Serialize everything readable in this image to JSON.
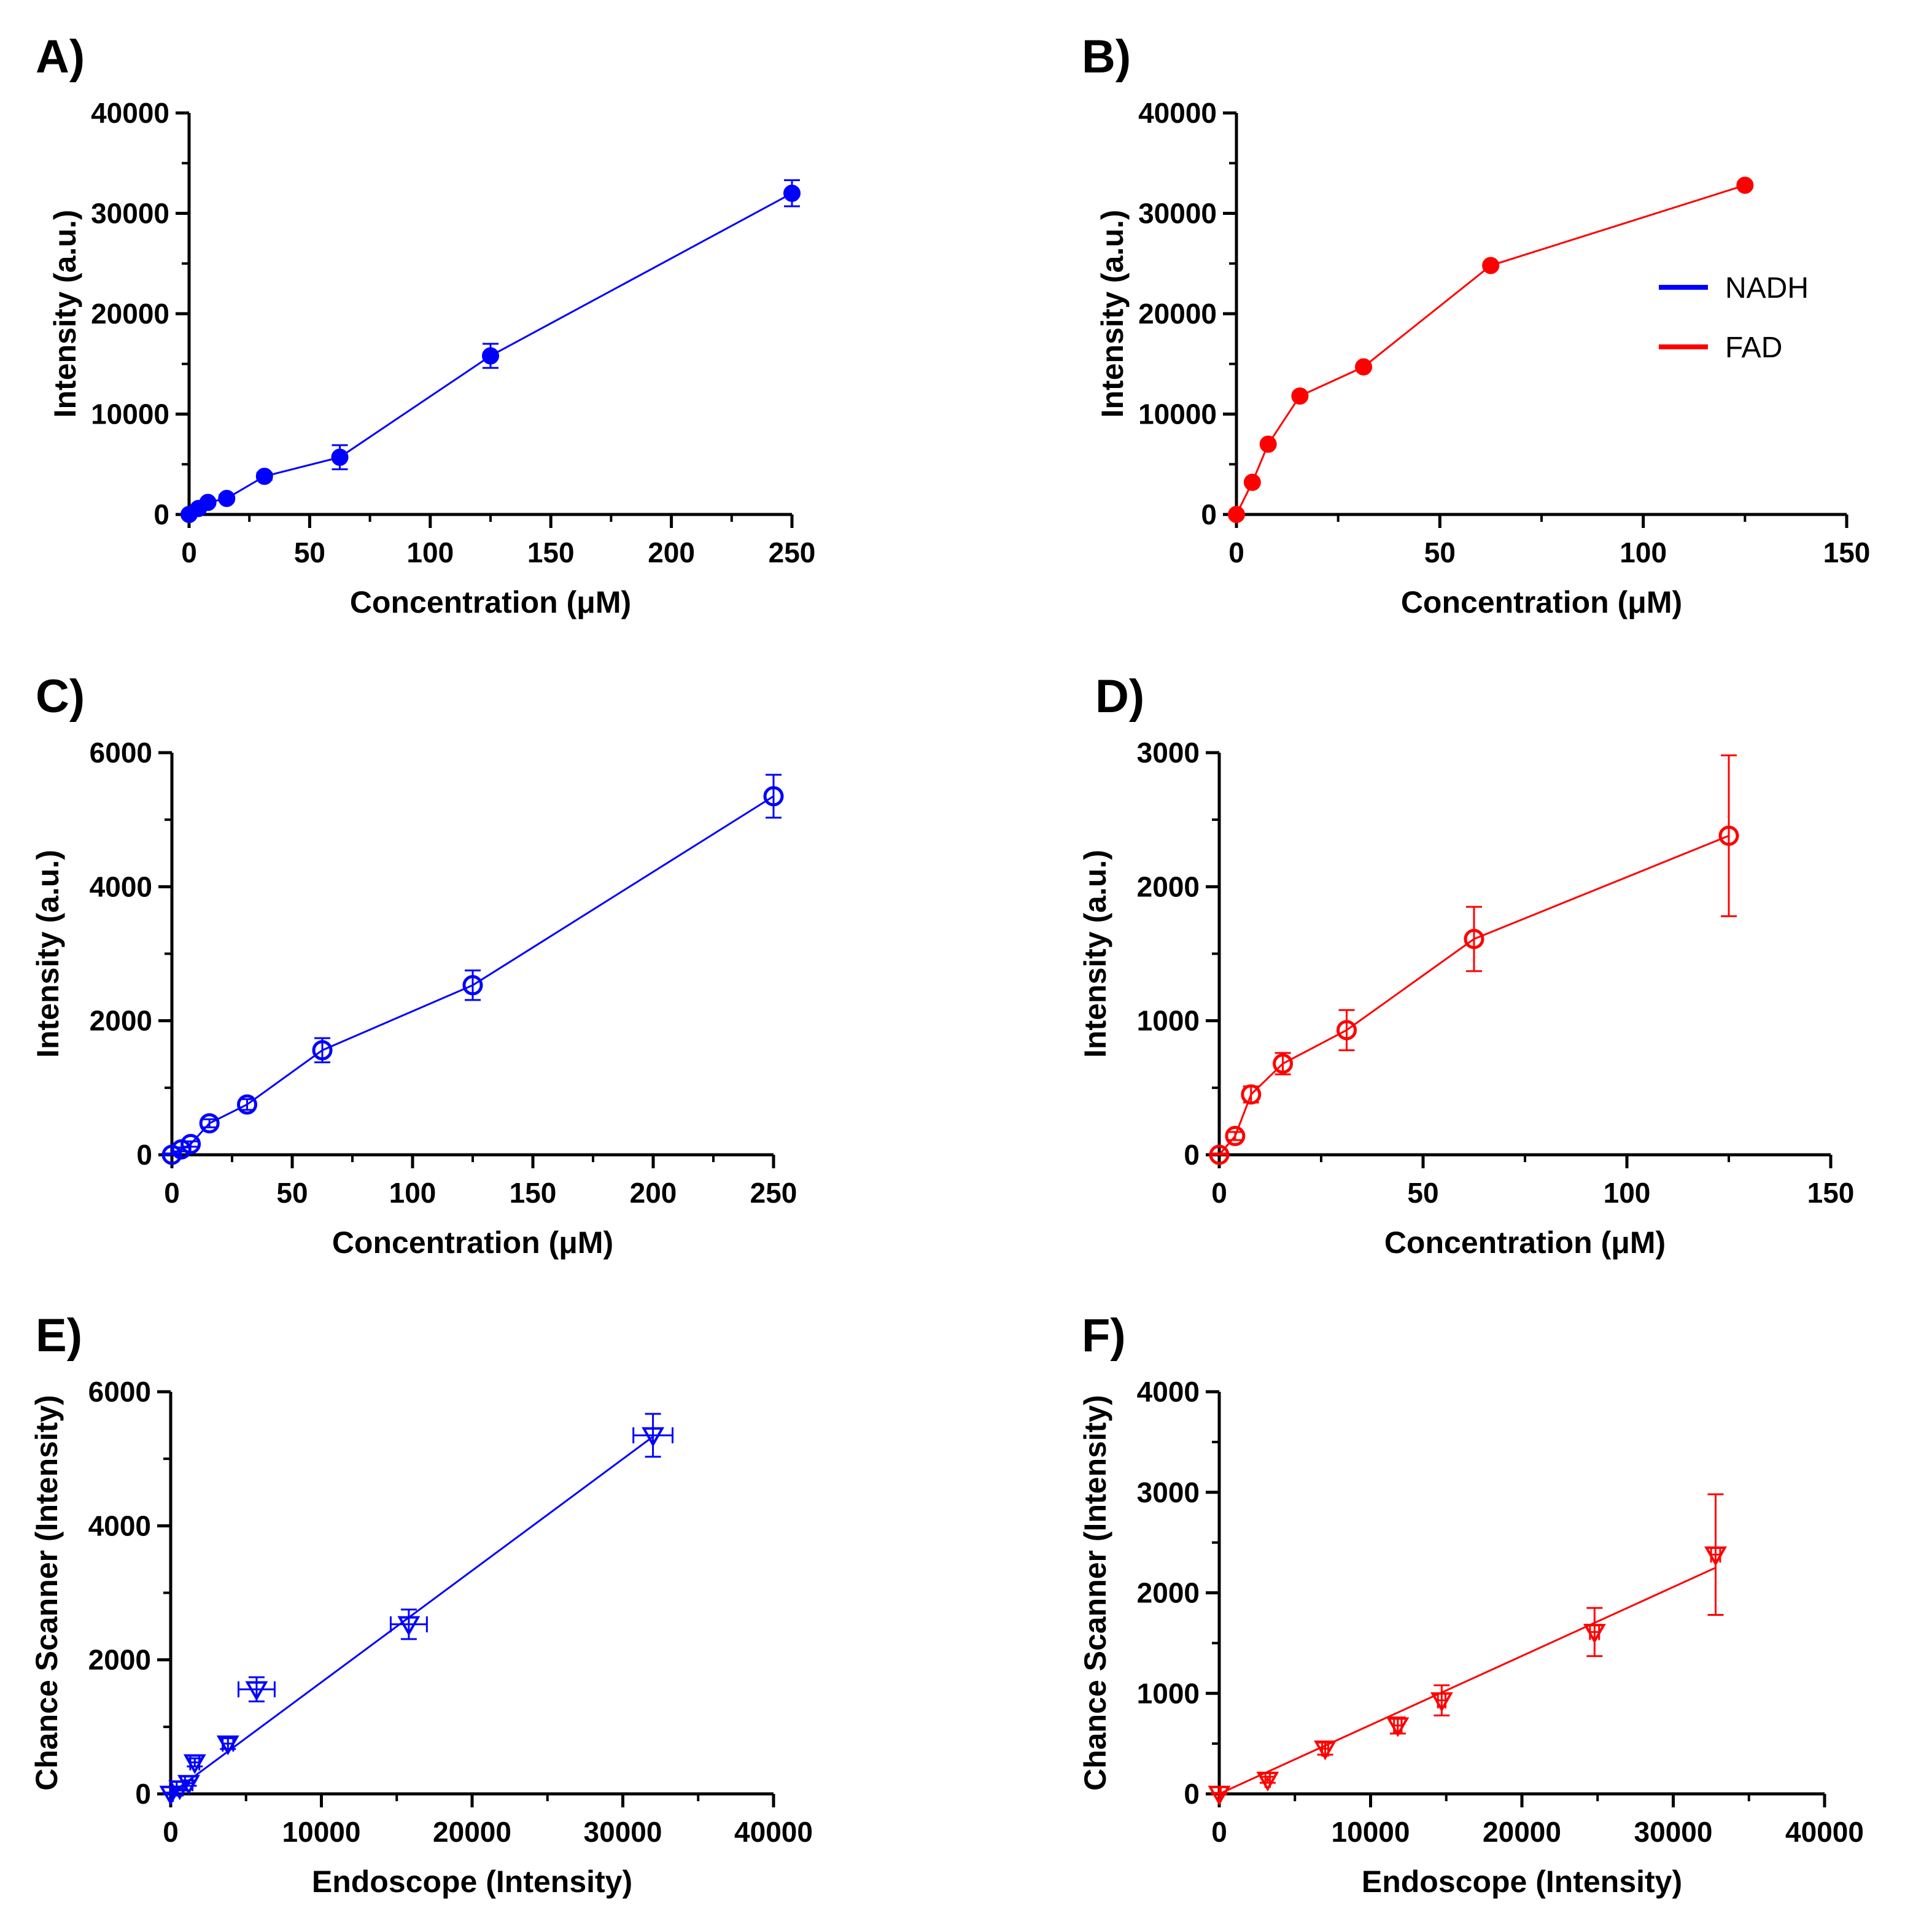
{
  "figure": {
    "legend": {
      "entries": [
        {
          "label": "NADH",
          "color": "#0000ff"
        },
        {
          "label": "FAD",
          "color": "#ff0000"
        }
      ]
    }
  },
  "chart_data": [
    {
      "id": "A",
      "panel_label": "A)",
      "type": "line",
      "color": "#0000ff",
      "marker": "filled-circle",
      "xlabel": "Concentration (μM)",
      "ylabel": "Intensity (a.u.)",
      "xlim": [
        0,
        250
      ],
      "ylim": [
        0,
        40000
      ],
      "xticks": [
        0,
        50,
        100,
        150,
        200,
        250
      ],
      "xtick_labels": [
        "0",
        "50",
        "100",
        "150",
        "200",
        "250"
      ],
      "yticks": [
        0,
        10000,
        20000,
        30000,
        40000
      ],
      "ytick_labels": [
        "0",
        "10000",
        "20000",
        "30000",
        "40000"
      ],
      "x": [
        0,
        3.9,
        7.8,
        15.6,
        31.25,
        62.5,
        125,
        250
      ],
      "y": [
        0,
        600,
        1200,
        1600,
        3800,
        5700,
        15800,
        32000
      ],
      "yerr": [
        150,
        200,
        250,
        300,
        350,
        1200,
        1200,
        1300
      ],
      "xerr": null
    },
    {
      "id": "B",
      "panel_label": "B)",
      "type": "line",
      "color": "#ff0000",
      "marker": "filled-circle",
      "xlabel": "Concentration (μM)",
      "ylabel": "Intensity (a.u.)",
      "xlim": [
        0,
        150
      ],
      "ylim": [
        0,
        40000
      ],
      "xticks": [
        0,
        50,
        100,
        150
      ],
      "xtick_labels": [
        "0",
        "50",
        "100",
        "150"
      ],
      "yticks": [
        0,
        10000,
        20000,
        30000,
        40000
      ],
      "ytick_labels": [
        "0",
        "10000",
        "20000",
        "30000",
        "40000"
      ],
      "x": [
        0,
        3.9,
        7.8,
        15.6,
        31.25,
        62.5,
        125
      ],
      "y": [
        0,
        3200,
        7000,
        11800,
        14700,
        24800,
        32800
      ],
      "yerr": [
        100,
        150,
        200,
        250,
        250,
        300,
        300
      ],
      "xerr": null
    },
    {
      "id": "C",
      "panel_label": "C)",
      "type": "line",
      "color": "#0000ff",
      "marker": "open-circle",
      "xlabel": "Concentration (μM)",
      "ylabel": "Intensity (a.u.)",
      "xlim": [
        0,
        250
      ],
      "ylim": [
        0,
        6000
      ],
      "xticks": [
        0,
        50,
        100,
        150,
        200,
        250
      ],
      "xtick_labels": [
        "0",
        "50",
        "100",
        "150",
        "200",
        "250"
      ],
      "yticks": [
        0,
        2000,
        4000,
        6000
      ],
      "ytick_labels": [
        "0",
        "2000",
        "4000",
        "6000"
      ],
      "x": [
        0,
        3.9,
        7.8,
        15.6,
        31.25,
        62.5,
        125,
        250
      ],
      "y": [
        0,
        80,
        160,
        470,
        750,
        1560,
        2530,
        5350
      ],
      "yerr": [
        20,
        30,
        40,
        60,
        80,
        180,
        220,
        320
      ],
      "xerr": null
    },
    {
      "id": "D",
      "panel_label": "D)",
      "type": "line",
      "color": "#ff0000",
      "marker": "open-circle",
      "xlabel": "Concentration (μM)",
      "ylabel": "Intensity (a.u.)",
      "xlim": [
        0,
        150
      ],
      "ylim": [
        0,
        3000
      ],
      "xticks": [
        0,
        50,
        100,
        150
      ],
      "xtick_labels": [
        "0",
        "50",
        "100",
        "150"
      ],
      "yticks": [
        0,
        1000,
        2000,
        3000
      ],
      "ytick_labels": [
        "0",
        "1000",
        "2000",
        "3000"
      ],
      "x": [
        0,
        3.9,
        7.8,
        15.6,
        31.25,
        62.5,
        125
      ],
      "y": [
        0,
        140,
        450,
        680,
        930,
        1610,
        2380
      ],
      "yerr": [
        10,
        30,
        60,
        80,
        150,
        240,
        600
      ],
      "xerr": null
    },
    {
      "id": "E",
      "panel_label": "E)",
      "type": "scatter",
      "color": "#0000ff",
      "marker": "open-down-triangle",
      "xlabel": "Endoscope (Intensity)",
      "ylabel": "Chance Scanner (Intensity)",
      "xlim": [
        0,
        40000
      ],
      "ylim": [
        0,
        6000
      ],
      "xticks": [
        0,
        10000,
        20000,
        30000,
        40000
      ],
      "xtick_labels": [
        "0",
        "10000",
        "20000",
        "30000",
        "40000"
      ],
      "yticks": [
        0,
        2000,
        4000,
        6000
      ],
      "ytick_labels": [
        "0",
        "2000",
        "4000",
        "6000"
      ],
      "x": [
        0,
        600,
        1200,
        1600,
        3800,
        5700,
        15800,
        32000
      ],
      "y": [
        0,
        80,
        160,
        470,
        750,
        1560,
        2530,
        5350
      ],
      "yerr": [
        20,
        30,
        40,
        60,
        80,
        180,
        220,
        320
      ],
      "xerr": [
        150,
        200,
        250,
        300,
        350,
        1200,
        1200,
        1300
      ],
      "fit": {
        "x": [
          0,
          32000
        ],
        "y": [
          0,
          5330
        ]
      }
    },
    {
      "id": "F",
      "panel_label": "F)",
      "type": "scatter",
      "color": "#ff0000",
      "marker": "open-down-triangle",
      "xlabel": "Endoscope (Intensity)",
      "ylabel": "Chance Scanner (Intensity)",
      "xlim": [
        0,
        40000
      ],
      "ylim": [
        0,
        4000
      ],
      "xticks": [
        0,
        10000,
        20000,
        30000,
        40000
      ],
      "xtick_labels": [
        "0",
        "10000",
        "20000",
        "30000",
        "40000"
      ],
      "yticks": [
        0,
        1000,
        2000,
        3000,
        4000
      ],
      "ytick_labels": [
        "0",
        "1000",
        "2000",
        "3000",
        "4000"
      ],
      "x": [
        0,
        3200,
        7000,
        11800,
        14700,
        24800,
        32800
      ],
      "y": [
        0,
        140,
        450,
        680,
        930,
        1610,
        2380
      ],
      "yerr": [
        10,
        30,
        60,
        80,
        150,
        240,
        600
      ],
      "xerr": [
        100,
        150,
        200,
        250,
        250,
        300,
        300
      ],
      "fit": {
        "x": [
          0,
          32800
        ],
        "y": [
          0,
          2250
        ]
      }
    }
  ]
}
